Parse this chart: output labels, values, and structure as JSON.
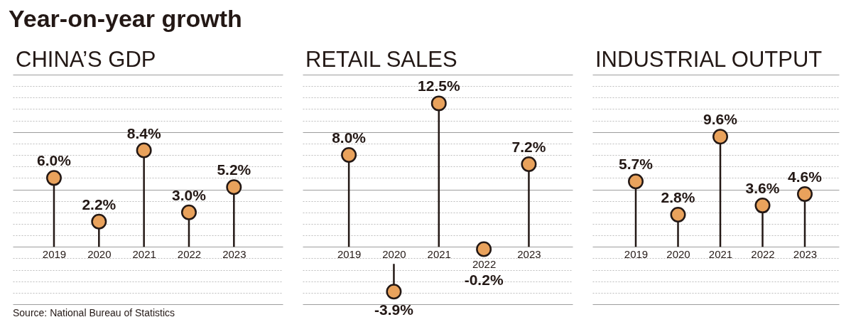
{
  "chart_data": [
    {
      "type": "other",
      "title": "Year-on-year growth"
    },
    {
      "type": "lollipop",
      "title": "CHINA’S GDP",
      "categories": [
        "2019",
        "2020",
        "2021",
        "2022",
        "2023"
      ],
      "values": [
        6.0,
        2.2,
        8.4,
        3.0,
        5.2
      ],
      "value_labels": [
        "6.0%",
        "2.2%",
        "8.4%",
        "3.0%",
        "5.2%"
      ],
      "color": "#e9a25c",
      "marker": "circle",
      "ylim": [
        -5,
        15
      ],
      "yticks": [
        {
          "value": -5,
          "label": null
        },
        {
          "value": -4,
          "label": null
        },
        {
          "value": -3,
          "label": null
        },
        {
          "value": -2,
          "label": null
        },
        {
          "value": -1,
          "label": null
        },
        {
          "value": 0,
          "label": null
        },
        {
          "value": 1,
          "label": null
        },
        {
          "value": 2,
          "label": null
        },
        {
          "value": 3,
          "label": null
        },
        {
          "value": 4,
          "label": null
        },
        {
          "value": 5,
          "label": null
        },
        {
          "value": 6,
          "label": null
        },
        {
          "value": 7,
          "label": null
        },
        {
          "value": 8,
          "label": null
        },
        {
          "value": 9,
          "label": null
        },
        {
          "value": 10,
          "label": null
        },
        {
          "value": 11,
          "label": null
        },
        {
          "value": 12,
          "label": null
        },
        {
          "value": 13,
          "label": null
        },
        {
          "value": 14,
          "label": null
        },
        {
          "value": 15,
          "label": null
        }
      ],
      "grid": "y",
      "tick_labels": "x",
      "annotations": [
        "Source: National Bureau of Statistics"
      ]
    },
    {
      "type": "lollipop",
      "title": "RETAIL SALES",
      "categories": [
        "2019",
        "2020",
        "2021",
        "2022",
        "2023"
      ],
      "values": [
        8.0,
        -3.9,
        12.5,
        -0.2,
        7.2
      ],
      "value_labels": [
        "8.0%",
        "-3.9%",
        "12.5%",
        "-0.2%",
        "7.2%"
      ],
      "color": "#e9a25c",
      "marker": "circle",
      "ylim": [
        -5,
        15
      ],
      "yticks": [
        {
          "value": -5,
          "label": null
        },
        {
          "value": -4,
          "label": null
        },
        {
          "value": -3,
          "label": null
        },
        {
          "value": -2,
          "label": null
        },
        {
          "value": -1,
          "label": null
        },
        {
          "value": 0,
          "label": null
        },
        {
          "value": 1,
          "label": null
        },
        {
          "value": 2,
          "label": null
        },
        {
          "value": 3,
          "label": null
        },
        {
          "value": 4,
          "label": null
        },
        {
          "value": 5,
          "label": null
        },
        {
          "value": 6,
          "label": null
        },
        {
          "value": 7,
          "label": null
        },
        {
          "value": 8,
          "label": null
        },
        {
          "value": 9,
          "label": null
        },
        {
          "value": 10,
          "label": null
        },
        {
          "value": 11,
          "label": null
        },
        {
          "value": 12,
          "label": null
        },
        {
          "value": 13,
          "label": null
        },
        {
          "value": 14,
          "label": null
        },
        {
          "value": 15,
          "label": null
        }
      ],
      "grid": "y",
      "tick_labels": "x"
    },
    {
      "type": "lollipop",
      "title": "INDUSTRIAL OUTPUT",
      "categories": [
        "2019",
        "2020",
        "2021",
        "2022",
        "2023"
      ],
      "values": [
        5.7,
        2.8,
        9.6,
        3.6,
        4.6
      ],
      "value_labels": [
        "5.7%",
        "2.8%",
        "9.6%",
        "3.6%",
        "4.6%"
      ],
      "color": "#e9a25c",
      "marker": "circle",
      "ylim": [
        -5,
        15
      ],
      "yticks": [
        {
          "value": -5,
          "label": null
        },
        {
          "value": -4,
          "label": null
        },
        {
          "value": -3,
          "label": null
        },
        {
          "value": -2,
          "label": null
        },
        {
          "value": -1,
          "label": null
        },
        {
          "value": 0,
          "label": null
        },
        {
          "value": 1,
          "label": null
        },
        {
          "value": 2,
          "label": null
        },
        {
          "value": 3,
          "label": null
        },
        {
          "value": 4,
          "label": null
        },
        {
          "value": 5,
          "label": null
        },
        {
          "value": 6,
          "label": null
        },
        {
          "value": 7,
          "label": null
        },
        {
          "value": 8,
          "label": null
        },
        {
          "value": 9,
          "label": null
        },
        {
          "value": 10,
          "label": null
        },
        {
          "value": 11,
          "label": null
        },
        {
          "value": 12,
          "label": null
        },
        {
          "value": 13,
          "label": null
        },
        {
          "value": 14,
          "label": null
        },
        {
          "value": 15,
          "label": null
        }
      ],
      "grid": "y",
      "tick_labels": "x"
    }
  ]
}
